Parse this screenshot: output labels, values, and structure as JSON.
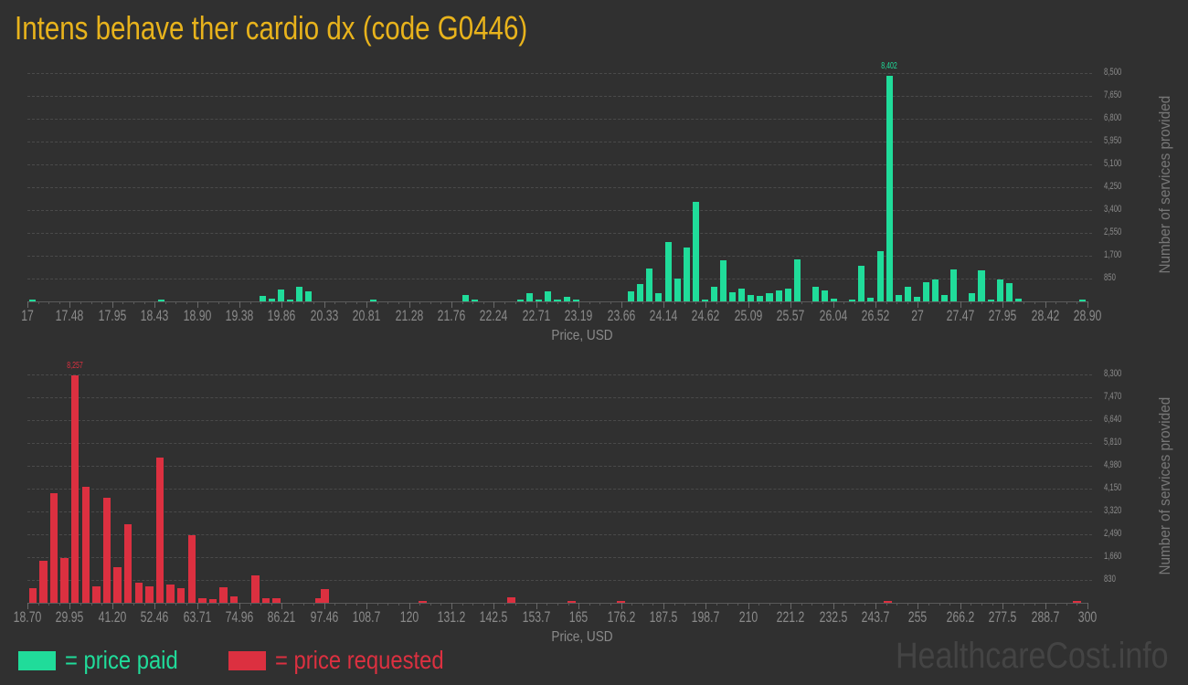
{
  "title": "Intens behave ther cardio dx (code G0446)",
  "colors": {
    "paid": "#20dc9a",
    "requested": "#dc3040",
    "title": "#e8b31c"
  },
  "legend": {
    "paid_label": "= price paid",
    "requested_label": "= price requested"
  },
  "watermark": "HealthcareCost.info",
  "chart_data": [
    {
      "type": "bar",
      "title": "Price paid distribution",
      "xlabel": "Price, USD",
      "ylabel": "Number of services provided",
      "x_tick_labels": [
        "17",
        "17.48",
        "17.95",
        "18.43",
        "18.90",
        "19.38",
        "19.86",
        "20.33",
        "20.81",
        "21.28",
        "21.76",
        "22.24",
        "22.71",
        "23.19",
        "23.66",
        "24.14",
        "24.62",
        "25.09",
        "25.57",
        "26.04",
        "26.52",
        "27",
        "27.47",
        "27.95",
        "28.42",
        "28.90"
      ],
      "y_tick_labels": [
        "850",
        "1,700",
        "2,550",
        "3,400",
        "4,250",
        "5,100",
        "5,950",
        "6,800",
        "7,650",
        "8,500"
      ],
      "ylim": [
        0,
        8500
      ],
      "peak_label": "8,402",
      "xlim": [
        17,
        28.9
      ],
      "values": [
        40,
        0,
        0,
        0,
        0,
        0,
        0,
        0,
        0,
        0,
        0,
        0,
        0,
        0,
        40,
        0,
        0,
        0,
        0,
        0,
        0,
        0,
        0,
        0,
        0,
        200,
        100,
        430,
        40,
        550,
        380,
        0,
        0,
        0,
        0,
        0,
        0,
        80,
        0,
        0,
        0,
        0,
        0,
        0,
        0,
        0,
        0,
        230,
        40,
        0,
        0,
        0,
        0,
        40,
        300,
        40,
        360,
        40,
        180,
        40,
        0,
        0,
        0,
        0,
        0,
        390,
        640,
        1220,
        310,
        2220,
        850,
        2010,
        3700,
        50,
        560,
        1530,
        330,
        480,
        240,
        200,
        310,
        400,
        460,
        1570,
        0,
        560,
        400,
        90,
        0,
        20,
        1330,
        130,
        1860,
        8402,
        230,
        560,
        170,
        730,
        820,
        250,
        1190,
        0,
        300,
        1150,
        70,
        800,
        690,
        100,
        0,
        0,
        0,
        0,
        0,
        0,
        60
      ]
    },
    {
      "type": "bar",
      "title": "Price requested distribution",
      "xlabel": "Price, USD",
      "ylabel": "Number of services provided",
      "x_tick_labels": [
        "18.70",
        "29.95",
        "41.20",
        "52.46",
        "63.71",
        "74.96",
        "86.21",
        "97.46",
        "108.7",
        "120",
        "131.2",
        "142.5",
        "153.7",
        "165",
        "176.2",
        "187.5",
        "198.7",
        "210",
        "221.2",
        "232.5",
        "243.7",
        "255",
        "266.2",
        "277.5",
        "288.7",
        "300"
      ],
      "y_tick_labels": [
        "830",
        "1,660",
        "2,490",
        "3,320",
        "4,150",
        "4,980",
        "5,810",
        "6,640",
        "7,470",
        "8,300"
      ],
      "ylim": [
        0,
        8300
      ],
      "peak_label": "8,257",
      "xlim": [
        18.7,
        300
      ],
      "values": [
        540,
        1530,
        4000,
        1630,
        8257,
        4210,
        610,
        3820,
        1300,
        2850,
        730,
        610,
        5280,
        650,
        530,
        2460,
        180,
        140,
        580,
        230,
        0,
        1000,
        150,
        180,
        0,
        0,
        0,
        0,
        0,
        0,
        0,
        0,
        0,
        0,
        0,
        0,
        0,
        0,
        0,
        0,
        0,
        0,
        0,
        0,
        0,
        0,
        0,
        0,
        0,
        0,
        0,
        0,
        0,
        0,
        0,
        0,
        0,
        0,
        0,
        0,
        0,
        0,
        0,
        0,
        0,
        0,
        0,
        0,
        0,
        0,
        0,
        0,
        0,
        0,
        0,
        0,
        0,
        0,
        0,
        0,
        0,
        0,
        0,
        0,
        0,
        0,
        0,
        0,
        0,
        0,
        0,
        0,
        0,
        0,
        0,
        0,
        0,
        0,
        0,
        0
      ],
      "sparse_values": [
        {
          "x": 96.0,
          "v": 150
        },
        {
          "x": 97.5,
          "v": 500
        },
        {
          "x": 123.5,
          "v": 25
        },
        {
          "x": 147.0,
          "v": 200
        },
        {
          "x": 163.0,
          "v": 50
        },
        {
          "x": 176.0,
          "v": 50
        },
        {
          "x": 247.0,
          "v": 60
        },
        {
          "x": 297.0,
          "v": 60
        }
      ]
    }
  ]
}
